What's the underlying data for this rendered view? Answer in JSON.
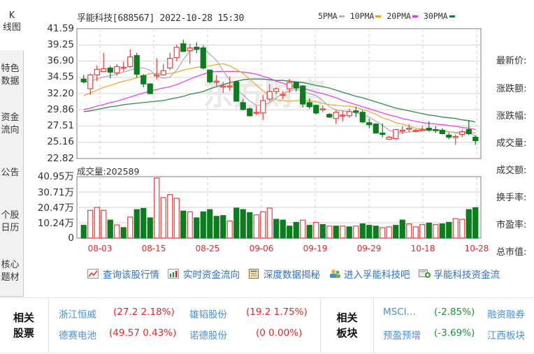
{
  "left_nav": {
    "k_label": "K\n线图",
    "items": [
      {
        "label": "特色\n数据"
      },
      {
        "label": "资金\n流向"
      },
      {
        "label": "公告"
      },
      {
        "label": "个股\n日历"
      },
      {
        "label": "核心\n题材"
      }
    ]
  },
  "header": {
    "title": "孚能科技[688567] 2022-10-28 15:30",
    "legend": [
      {
        "label": "5PMA",
        "color": "#b4b4b4"
      },
      {
        "label": "10PMA",
        "color": "#f0a018"
      },
      {
        "label": "20PMA",
        "color": "#f030f0"
      },
      {
        "label": "30PMA",
        "color": "#1f7a3c"
      }
    ]
  },
  "volume_label": "成交量:202589",
  "info_panel": {
    "rows": [
      "最新价:",
      "涨跌额:",
      "涨跌幅:",
      "成交量:",
      "成交额:",
      "换手率:",
      "市盈率:",
      "总市值:"
    ]
  },
  "quick_links": [
    {
      "label": "查询该股行情",
      "icon": "line-chart-icon"
    },
    {
      "label": "实时资金流向",
      "icon": "bar-chart-icon"
    },
    {
      "label": "深度数据揭秘",
      "icon": "calculator-icon"
    },
    {
      "label": "进入孚能科技吧",
      "icon": "users-icon"
    },
    {
      "label": "孚能科技资金流",
      "icon": "money-flow-icon"
    }
  ],
  "related_stocks": {
    "title": "相关\n股票",
    "items": [
      {
        "name": "浙江恒威",
        "value": "(27.2 2.18%)",
        "tone": "red"
      },
      {
        "name": "雄韬股份",
        "value": "(19.2 1.75%)",
        "tone": "red"
      },
      {
        "name": "德赛电池",
        "value": "(49.57 0.43%)",
        "tone": "red"
      },
      {
        "name": "诺德股份",
        "value": "(0 0.00%)",
        "tone": "red"
      }
    ]
  },
  "related_sectors": {
    "title": "相关\n板块",
    "items": [
      {
        "name": "MSCI...",
        "value": "(-2.85%)",
        "tone": "green"
      },
      {
        "name": "融资融券",
        "value": "",
        "tone": "green"
      },
      {
        "name": "预盈预增",
        "value": "(-3.69%)",
        "tone": "green"
      },
      {
        "name": "江西板块",
        "value": "",
        "tone": "green"
      }
    ]
  },
  "colors": {
    "up": "#f03c3c",
    "down": "#0a7d1e",
    "grid": "#dcdcdc",
    "frame": "#a8a8a8"
  },
  "chart_data": [
    {
      "type": "candlestick",
      "title": "孚能科技[688567] 2022-10-28 15:30",
      "ylabel": "Price",
      "ylim": [
        22.82,
        41.59
      ],
      "yticks": [
        "41.59",
        "39.25",
        "36.90",
        "34.55",
        "32.20",
        "29.86",
        "27.51",
        "25.16",
        "22.82"
      ],
      "x_tick_labels": [
        "08-03",
        "08-15",
        "08-25",
        "09-06",
        "09-19",
        "09-29",
        "10-18",
        "10-28"
      ],
      "legend": [
        "5PMA",
        "10PMA",
        "20PMA",
        "30PMA"
      ],
      "candles": [
        {
          "o": 34.3,
          "c": 33.9,
          "h": 34.9,
          "l": 33.7
        },
        {
          "o": 32.9,
          "c": 34.9,
          "h": 35.1,
          "l": 32.0
        },
        {
          "o": 34.9,
          "c": 35.7,
          "h": 36.3,
          "l": 34.0
        },
        {
          "o": 35.4,
          "c": 35.8,
          "h": 38.1,
          "l": 35.3
        },
        {
          "o": 35.9,
          "c": 35.3,
          "h": 36.2,
          "l": 34.4
        },
        {
          "o": 35.2,
          "c": 36.1,
          "h": 36.5,
          "l": 34.8
        },
        {
          "o": 35.9,
          "c": 36.0,
          "h": 36.8,
          "l": 35.4
        },
        {
          "o": 36.1,
          "c": 37.5,
          "h": 38.6,
          "l": 35.9
        },
        {
          "o": 37.7,
          "c": 35.0,
          "h": 38.1,
          "l": 34.5
        },
        {
          "o": 34.8,
          "c": 33.6,
          "h": 35.0,
          "l": 33.1
        },
        {
          "o": 33.6,
          "c": 32.2,
          "h": 33.7,
          "l": 32.1
        },
        {
          "o": 34.8,
          "c": 34.9,
          "h": 37.3,
          "l": 34.2
        },
        {
          "o": 34.9,
          "c": 35.5,
          "h": 36.5,
          "l": 34.8
        },
        {
          "o": 35.9,
          "c": 37.3,
          "h": 38.1,
          "l": 35.6
        },
        {
          "o": 37.4,
          "c": 38.9,
          "h": 39.3,
          "l": 36.9
        },
        {
          "o": 39.4,
          "c": 38.3,
          "h": 40.0,
          "l": 38.2
        },
        {
          "o": 38.4,
          "c": 38.8,
          "h": 39.4,
          "l": 36.5
        },
        {
          "o": 38.9,
          "c": 38.6,
          "h": 39.6,
          "l": 38.0
        },
        {
          "o": 38.8,
          "c": 35.9,
          "h": 39.2,
          "l": 35.7
        },
        {
          "o": 35.6,
          "c": 33.9,
          "h": 35.7,
          "l": 33.7
        },
        {
          "o": 34.0,
          "c": 34.0,
          "h": 34.9,
          "l": 33.3
        },
        {
          "o": 33.2,
          "c": 33.3,
          "h": 33.9,
          "l": 32.3
        },
        {
          "o": 33.2,
          "c": 33.3,
          "h": 34.7,
          "l": 32.6
        },
        {
          "o": 33.9,
          "c": 31.1,
          "h": 34.1,
          "l": 31.1
        },
        {
          "o": 30.9,
          "c": 29.9,
          "h": 31.4,
          "l": 29.8
        },
        {
          "o": 30.0,
          "c": 29.0,
          "h": 30.2,
          "l": 28.9
        },
        {
          "o": 29.5,
          "c": 29.5,
          "h": 30.4,
          "l": 29.1
        },
        {
          "o": 29.4,
          "c": 31.2,
          "h": 32.0,
          "l": 28.4
        },
        {
          "o": 31.4,
          "c": 32.5,
          "h": 33.6,
          "l": 31.1
        },
        {
          "o": 32.5,
          "c": 32.9,
          "h": 33.1,
          "l": 32.1
        },
        {
          "o": 32.0,
          "c": 32.1,
          "h": 32.6,
          "l": 31.4
        },
        {
          "o": 32.9,
          "c": 33.8,
          "h": 34.3,
          "l": 32.3
        },
        {
          "o": 33.8,
          "c": 33.0,
          "h": 33.9,
          "l": 32.5
        },
        {
          "o": 33.3,
          "c": 30.7,
          "h": 33.4,
          "l": 30.2
        },
        {
          "o": 30.9,
          "c": 30.3,
          "h": 31.5,
          "l": 30.0
        },
        {
          "o": 30.5,
          "c": 29.4,
          "h": 30.6,
          "l": 29.2
        },
        {
          "o": 30.0,
          "c": 30.0,
          "h": 30.5,
          "l": 29.5
        },
        {
          "o": 29.2,
          "c": 28.8,
          "h": 29.4,
          "l": 28.7
        },
        {
          "o": 28.6,
          "c": 29.5,
          "h": 29.9,
          "l": 27.8
        },
        {
          "o": 29.1,
          "c": 29.1,
          "h": 29.7,
          "l": 28.2
        },
        {
          "o": 29.0,
          "c": 29.6,
          "h": 30.0,
          "l": 28.7
        },
        {
          "o": 29.7,
          "c": 29.5,
          "h": 30.3,
          "l": 28.8
        },
        {
          "o": 29.5,
          "c": 28.1,
          "h": 29.8,
          "l": 27.9
        },
        {
          "o": 28.0,
          "c": 27.7,
          "h": 28.6,
          "l": 27.2
        },
        {
          "o": 27.8,
          "c": 26.5,
          "h": 27.9,
          "l": 26.4
        },
        {
          "o": 26.5,
          "c": 26.3,
          "h": 27.9,
          "l": 25.9
        },
        {
          "o": 25.6,
          "c": 25.9,
          "h": 26.1,
          "l": 25.5
        },
        {
          "o": 25.7,
          "c": 27.0,
          "h": 27.1,
          "l": 25.5
        },
        {
          "o": 26.8,
          "c": 26.9,
          "h": 27.5,
          "l": 26.4
        },
        {
          "o": 27.1,
          "c": 27.2,
          "h": 27.8,
          "l": 26.6
        },
        {
          "o": 26.8,
          "c": 26.9,
          "h": 27.1,
          "l": 26.6
        },
        {
          "o": 27.0,
          "c": 27.0,
          "h": 27.5,
          "l": 26.9
        },
        {
          "o": 27.2,
          "c": 26.9,
          "h": 28.2,
          "l": 26.7
        },
        {
          "o": 27.0,
          "c": 26.9,
          "h": 27.5,
          "l": 26.5
        },
        {
          "o": 26.9,
          "c": 26.4,
          "h": 27.2,
          "l": 26.3
        },
        {
          "o": 26.2,
          "c": 25.9,
          "h": 26.6,
          "l": 25.6
        },
        {
          "o": 25.9,
          "c": 26.0,
          "h": 26.3,
          "l": 24.8
        },
        {
          "o": 26.3,
          "c": 26.7,
          "h": 27.0,
          "l": 25.9
        },
        {
          "o": 27.0,
          "c": 26.4,
          "h": 28.3,
          "l": 26.2
        },
        {
          "o": 25.9,
          "c": 25.4,
          "h": 26.2,
          "l": 24.8
        }
      ],
      "ma5": [
        33.8,
        34.0,
        34.3,
        34.6,
        34.8,
        35.0,
        35.3,
        35.6,
        35.9,
        35.9,
        35.6,
        34.7,
        34.4,
        34.6,
        35.6,
        37.1,
        38.4,
        38.6,
        38.8,
        37.9,
        37.0,
        35.5,
        34.1,
        32.9,
        32.0,
        31.1,
        30.5,
        30.5,
        30.9,
        31.6,
        32.2,
        32.6,
        32.8,
        32.5,
        32.2,
        31.9,
        31.2,
        30.3,
        29.8,
        29.7,
        29.6,
        29.4,
        29.2,
        28.8,
        28.2,
        27.6,
        26.9,
        26.6,
        26.5,
        26.7,
        26.7,
        26.8,
        27.0,
        27.0,
        26.9,
        26.7,
        26.5,
        26.4,
        26.6,
        26.0
      ],
      "ma10": [
        31.9,
        32.3,
        32.7,
        33.1,
        33.4,
        33.7,
        34.0,
        34.2,
        34.5,
        34.8,
        35.1,
        35.1,
        35.1,
        35.1,
        35.3,
        35.6,
        35.8,
        36.0,
        36.1,
        36.2,
        36.4,
        36.5,
        36.2,
        35.7,
        35.1,
        34.3,
        33.4,
        32.6,
        31.9,
        31.3,
        31.2,
        31.1,
        31.2,
        31.2,
        31.2,
        31.0,
        30.8,
        30.6,
        30.5,
        30.4,
        30.4,
        30.2,
        29.9,
        29.6,
        29.2,
        28.7,
        28.4,
        28.0,
        27.8,
        27.5,
        27.2,
        27.1,
        27.0,
        26.9,
        26.8,
        26.7,
        26.6,
        26.6,
        26.6,
        26.5
      ],
      "ma20": [
        29.9,
        30.1,
        30.4,
        30.6,
        30.9,
        31.1,
        31.4,
        31.7,
        32.0,
        32.3,
        32.6,
        32.8,
        33.0,
        33.2,
        33.5,
        33.9,
        34.3,
        34.7,
        35.0,
        35.3,
        35.4,
        35.4,
        35.4,
        35.4,
        35.3,
        35.2,
        35.0,
        34.7,
        34.4,
        34.0,
        33.7,
        33.4,
        33.2,
        33.0,
        32.7,
        32.4,
        32.2,
        31.9,
        31.6,
        31.2,
        30.9,
        30.6,
        30.3,
        30.0,
        29.7,
        29.4,
        29.1,
        28.9,
        28.6,
        28.4,
        28.2,
        28.0,
        27.9,
        27.8,
        27.7,
        27.6,
        27.5,
        27.3,
        27.2,
        27.0
      ],
      "ma30": [
        29.6,
        29.7,
        29.9,
        30.1,
        30.3,
        30.4,
        30.6,
        30.7,
        30.8,
        30.9,
        31.0,
        31.1,
        31.2,
        31.4,
        31.6,
        31.8,
        32.1,
        32.3,
        32.5,
        32.9,
        33.2,
        33.5,
        33.8,
        34.0,
        34.2,
        34.3,
        34.3,
        34.3,
        34.2,
        34.1,
        34.1,
        34.0,
        33.9,
        33.8,
        33.6,
        33.4,
        33.2,
        33.0,
        32.7,
        32.4,
        32.1,
        31.8,
        31.6,
        31.3,
        31.0,
        30.7,
        30.4,
        30.1,
        29.9,
        29.7,
        29.5,
        29.3,
        29.1,
        29.0,
        28.8,
        28.7,
        28.6,
        28.4,
        28.3,
        28.1
      ]
    },
    {
      "type": "bar",
      "title": "成交量:202589",
      "ylabel": "Volume",
      "ylim": [
        0,
        409500
      ],
      "yticks": [
        "40.95万",
        "30.71万",
        "20.47万",
        "10.24万",
        "0"
      ],
      "values": [
        85000,
        185000,
        205000,
        185000,
        120000,
        88000,
        70000,
        140000,
        190000,
        198000,
        135000,
        400000,
        270000,
        290000,
        265000,
        180000,
        175000,
        135000,
        175000,
        190000,
        145000,
        150000,
        115000,
        200000,
        190000,
        170000,
        155000,
        175000,
        200000,
        125000,
        120000,
        80000,
        105000,
        120000,
        85000,
        105000,
        90000,
        80000,
        80000,
        80000,
        75000,
        80000,
        95000,
        85000,
        80000,
        70000,
        75000,
        85000,
        120000,
        95000,
        75000,
        90000,
        100000,
        90000,
        95000,
        105000,
        130000,
        125000,
        190000,
        202589
      ],
      "direction": [
        "d",
        "u",
        "u",
        "u",
        "d",
        "u",
        "d",
        "u",
        "d",
        "d",
        "d",
        "u",
        "u",
        "u",
        "u",
        "d",
        "u",
        "d",
        "d",
        "d",
        "d",
        "d",
        "u",
        "d",
        "d",
        "d",
        "u",
        "u",
        "u",
        "d",
        "d",
        "d",
        "d",
        "u",
        "d",
        "u",
        "d",
        "u",
        "d",
        "u",
        "d",
        "u",
        "d",
        "d",
        "d",
        "u",
        "u",
        "d",
        "d",
        "u",
        "u",
        "u",
        "d",
        "u",
        "d",
        "d",
        "u",
        "u",
        "d",
        "d"
      ]
    }
  ]
}
